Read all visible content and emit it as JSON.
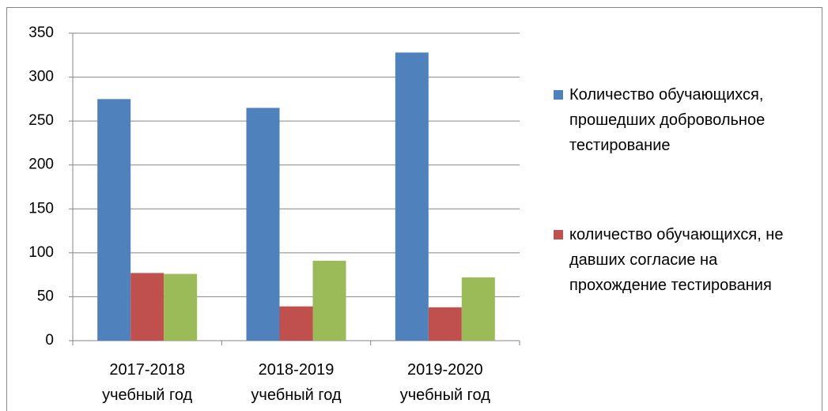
{
  "chart_data": {
    "type": "bar",
    "categories": [
      "2017-2018 учебный год",
      "2018-2019 учебный год",
      "2019-2020 учебный год"
    ],
    "series": [
      {
        "name": "Количество обучающихся, прошедших добровольное тестирование",
        "color": "#4f81bd",
        "values": [
          275,
          265,
          328
        ]
      },
      {
        "name": "количество обучающихся, не давших согласие на прохождение тестирования",
        "color": "#c0504d",
        "values": [
          77,
          39,
          38
        ]
      },
      {
        "color": "#9bbb59",
        "values": [
          76,
          91,
          72
        ]
      }
    ],
    "ylim": [
      0,
      350
    ],
    "yticks": [
      0,
      50,
      100,
      150,
      200,
      250,
      300,
      350
    ],
    "grid": true,
    "legend": "right"
  }
}
